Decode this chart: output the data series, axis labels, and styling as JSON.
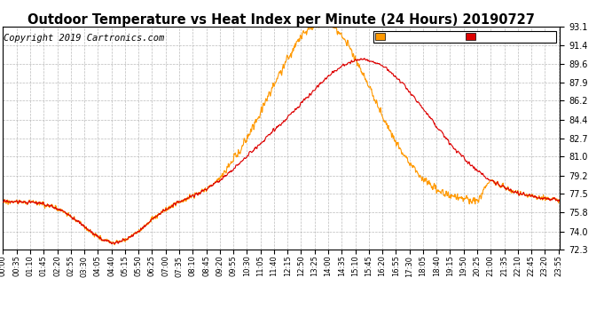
{
  "title": "Outdoor Temperature vs Heat Index per Minute (24 Hours) 20190727",
  "copyright": "Copyright 2019 Cartronics.com",
  "ylim": [
    72.3,
    93.1
  ],
  "yticks": [
    72.3,
    74.0,
    75.8,
    77.5,
    79.2,
    81.0,
    82.7,
    84.4,
    86.2,
    87.9,
    89.6,
    91.4,
    93.1
  ],
  "temp_color": "#dd0000",
  "heat_color": "#ff9900",
  "background_color": "#ffffff",
  "grid_color": "#aaaaaa",
  "legend_heat_bg": "#ff9900",
  "legend_temp_bg": "#dd0000",
  "title_fontsize": 10.5,
  "copyright_fontsize": 7.5
}
